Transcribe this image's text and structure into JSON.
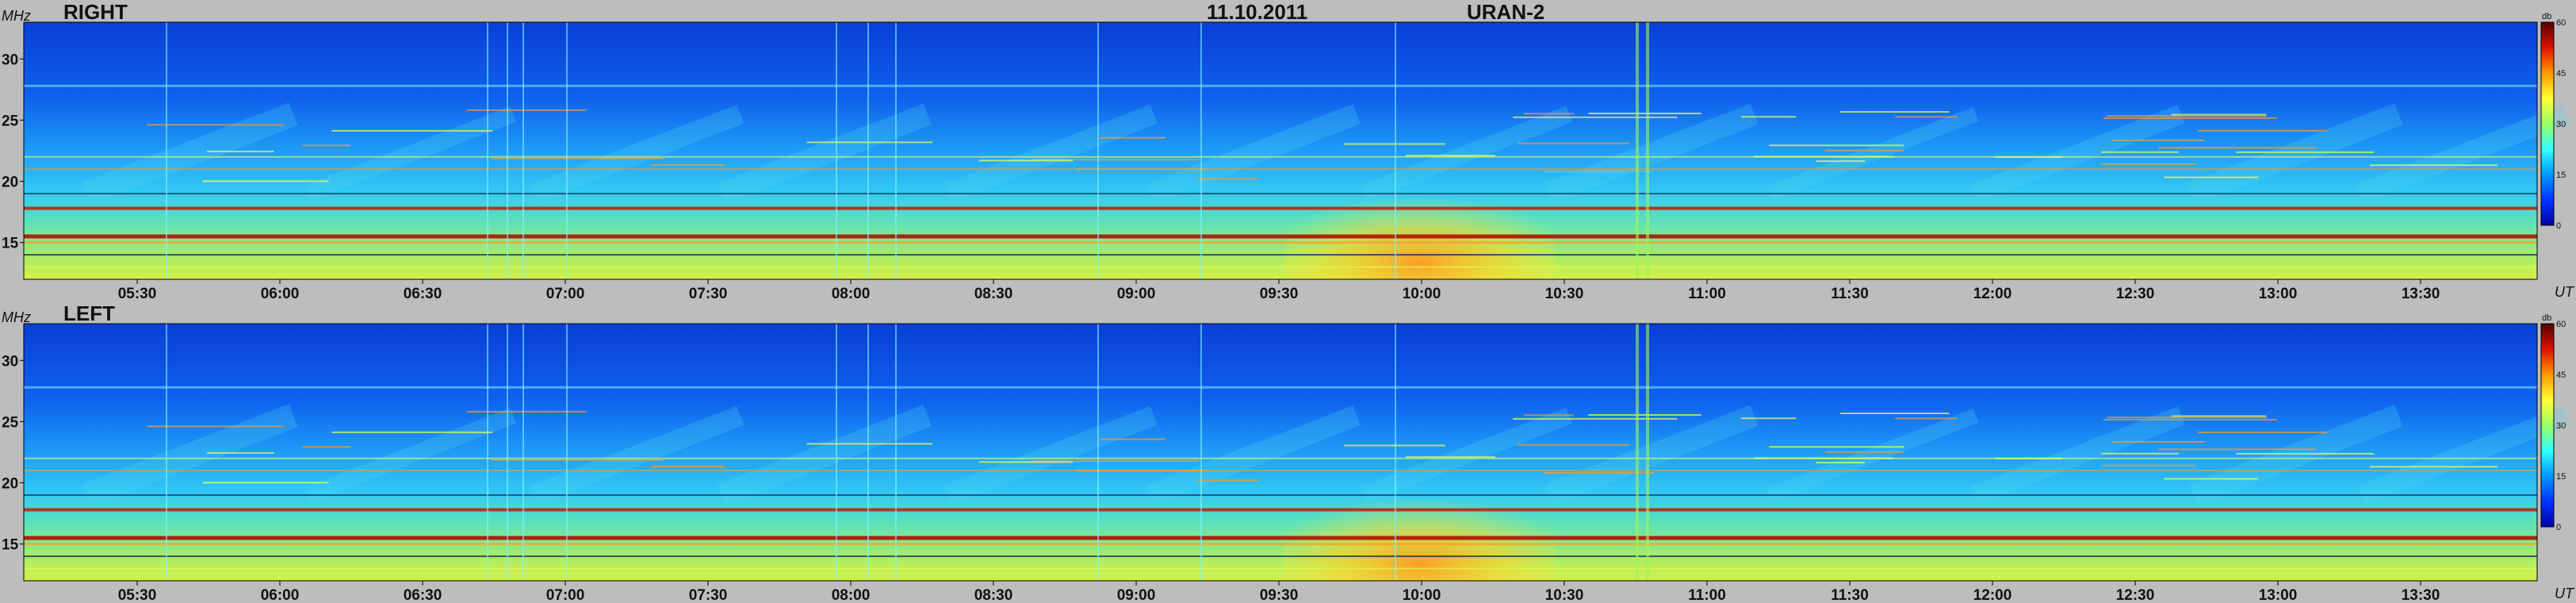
{
  "header": {
    "date": "11.10.2011",
    "instrument": "URAN-2"
  },
  "colors": {
    "background": "#bdbdbd",
    "colormap": [
      "#0000aa",
      "#0033ff",
      "#0099ff",
      "#33ffff",
      "#99ff66",
      "#ffff33",
      "#ff9900",
      "#dd1100",
      "#550000"
    ]
  },
  "chart_data": [
    {
      "type": "heatmap",
      "title": "RIGHT",
      "xlabel": "UT",
      "ylabel": "MHz",
      "x_tick_labels": [
        "05:30",
        "06:00",
        "06:30",
        "07:00",
        "07:30",
        "08:00",
        "08:30",
        "09:00",
        "09:30",
        "10:00",
        "10:30",
        "11:00",
        "11:30",
        "12:00",
        "12:30",
        "13:00",
        "13:30"
      ],
      "y_tick_labels": [
        "15",
        "20",
        "25",
        "30"
      ],
      "ylim": [
        12,
        33
      ],
      "colorbar": {
        "label": "db",
        "ticks": [
          "0",
          "15",
          "30",
          "45",
          "60"
        ],
        "range": [
          0,
          60
        ]
      }
    },
    {
      "type": "heatmap",
      "title": "LEFT",
      "xlabel": "UT",
      "ylabel": "MHz",
      "x_tick_labels": [
        "05:30",
        "06:00",
        "06:30",
        "07:00",
        "07:30",
        "08:00",
        "08:30",
        "09:00",
        "09:30",
        "10:00",
        "10:30",
        "11:00",
        "11:30",
        "12:00",
        "12:30",
        "13:00",
        "13:30"
      ],
      "y_tick_labels": [
        "15",
        "20",
        "25",
        "30"
      ],
      "ylim": [
        12,
        33
      ],
      "colorbar": {
        "label": "db",
        "ticks": [
          "0",
          "15",
          "30",
          "45",
          "60"
        ],
        "range": [
          0,
          60
        ]
      }
    }
  ]
}
